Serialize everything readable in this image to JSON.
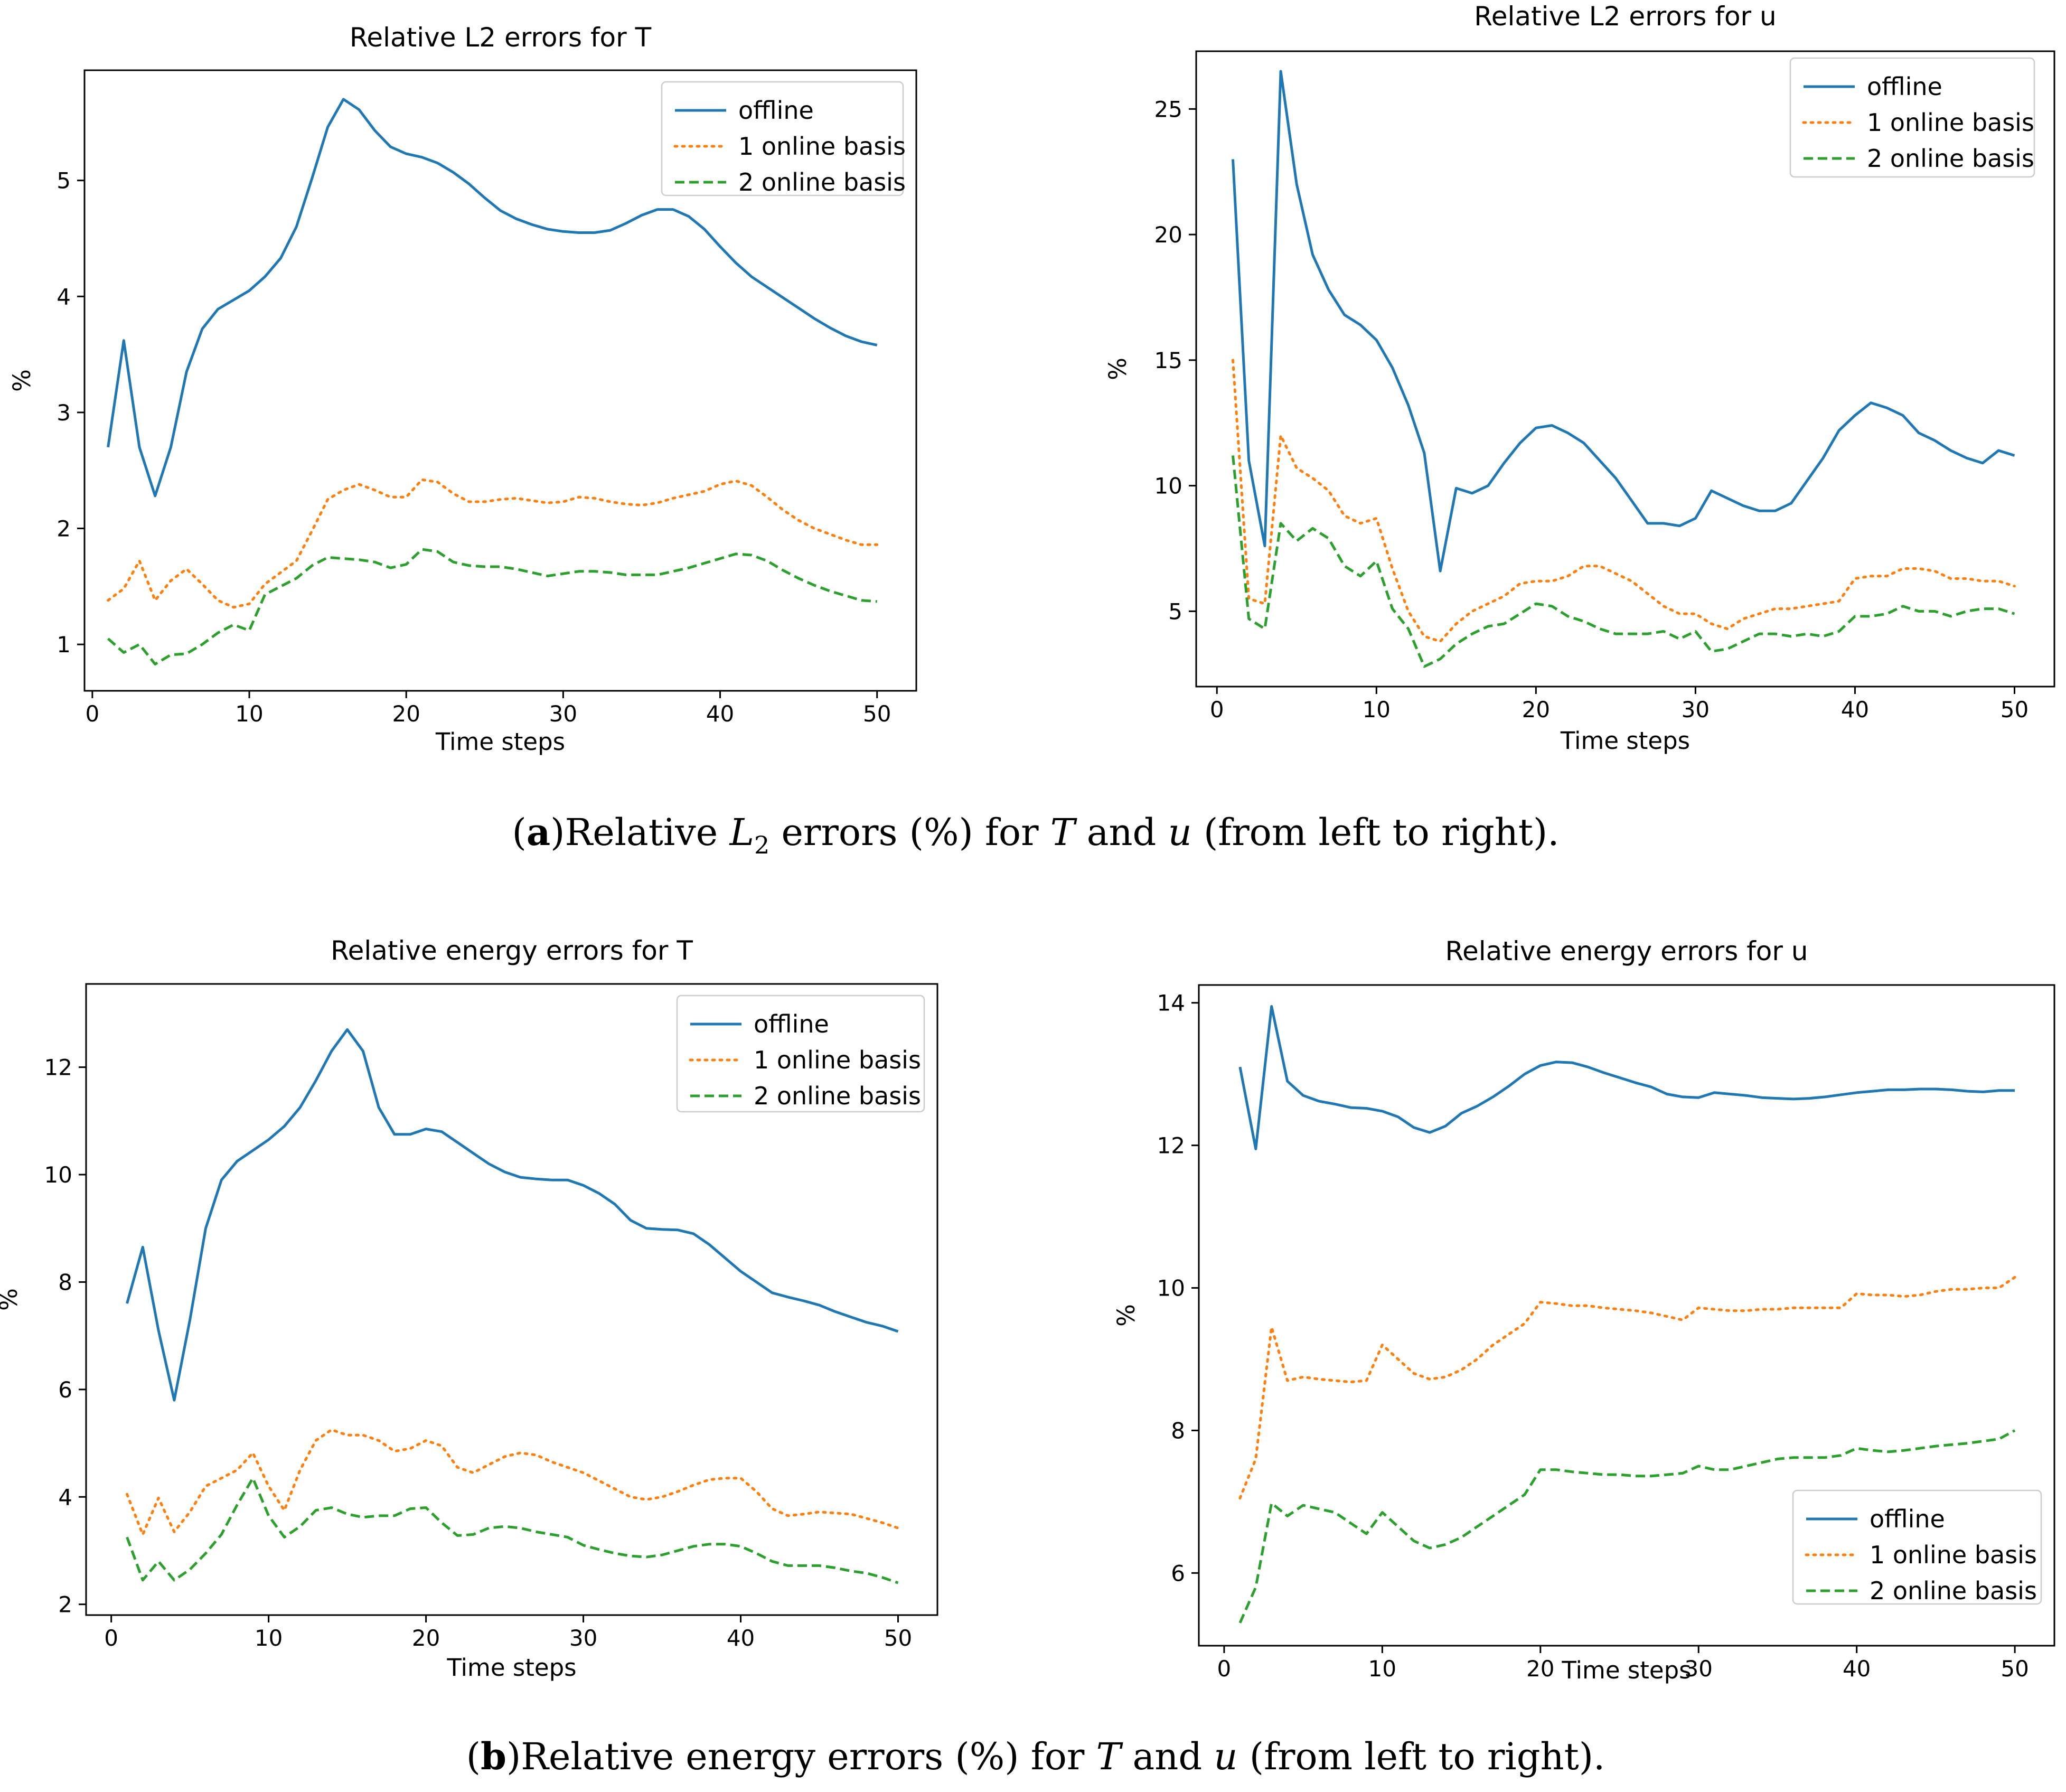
{
  "colors": {
    "offline": "#1f77b4",
    "online1": "#ff7f0e",
    "online2": "#2ca02c"
  },
  "legend": [
    "offline",
    "1 online basis",
    "2 online basis"
  ],
  "captions": {
    "a": {
      "label": "a",
      "text_before": "Relative ",
      "L": "L",
      "sub": "2",
      "text_mid": " errors (%) for ",
      "var1": "T",
      "and": " and ",
      "var2": "u",
      "text_after": " (from left to right)."
    },
    "b": {
      "label": "b",
      "text_before": "Relative energy errors (%) for ",
      "var1": "T",
      "and": " and ",
      "var2": "u",
      "text_after": " (from left to right)."
    }
  },
  "chart_data": [
    {
      "type": "line",
      "title": "Relative L2 errors for T",
      "xlabel": "Time steps",
      "ylabel": "%",
      "xlim": [
        -0.5,
        52.5
      ],
      "ylim": [
        0.6,
        5.95
      ],
      "xticks": [
        0,
        10,
        20,
        30,
        40,
        50
      ],
      "yticks": [
        1,
        2,
        3,
        4,
        5
      ],
      "legend_position": "top-right",
      "x": [
        1,
        2,
        3,
        4,
        5,
        6,
        7,
        8,
        9,
        10,
        11,
        12,
        13,
        14,
        15,
        16,
        17,
        18,
        19,
        20,
        21,
        22,
        23,
        24,
        25,
        26,
        27,
        28,
        29,
        30,
        31,
        32,
        33,
        34,
        35,
        36,
        37,
        38,
        39,
        40,
        41,
        42,
        43,
        44,
        45,
        46,
        47,
        48,
        49,
        50
      ],
      "series": [
        {
          "name": "offline",
          "style": "solid",
          "values": [
            2.7,
            3.62,
            2.7,
            2.28,
            2.7,
            3.35,
            3.72,
            3.89,
            3.97,
            4.05,
            4.17,
            4.33,
            4.6,
            5.02,
            5.46,
            5.7,
            5.61,
            5.43,
            5.29,
            5.23,
            5.2,
            5.15,
            5.07,
            4.97,
            4.85,
            4.74,
            4.67,
            4.62,
            4.58,
            4.56,
            4.55,
            4.55,
            4.57,
            4.63,
            4.7,
            4.75,
            4.75,
            4.69,
            4.58,
            4.43,
            4.29,
            4.17,
            4.08,
            3.99,
            3.9,
            3.81,
            3.73,
            3.66,
            3.61,
            3.58
          ]
        },
        {
          "name": "1 online basis",
          "style": "dotted",
          "values": [
            1.38,
            1.48,
            1.72,
            1.38,
            1.55,
            1.65,
            1.52,
            1.38,
            1.32,
            1.35,
            1.52,
            1.62,
            1.72,
            1.98,
            2.25,
            2.33,
            2.38,
            2.33,
            2.27,
            2.27,
            2.42,
            2.4,
            2.3,
            2.23,
            2.23,
            2.25,
            2.26,
            2.24,
            2.22,
            2.23,
            2.27,
            2.26,
            2.23,
            2.21,
            2.2,
            2.22,
            2.26,
            2.29,
            2.32,
            2.38,
            2.41,
            2.37,
            2.27,
            2.16,
            2.07,
            2.0,
            1.95,
            1.9,
            1.86,
            1.86
          ]
        },
        {
          "name": "2 online basis",
          "style": "dashed",
          "values": [
            1.05,
            0.93,
            1.0,
            0.83,
            0.91,
            0.92,
            1.0,
            1.1,
            1.17,
            1.12,
            1.43,
            1.5,
            1.57,
            1.68,
            1.75,
            1.74,
            1.73,
            1.71,
            1.66,
            1.69,
            1.82,
            1.8,
            1.71,
            1.68,
            1.67,
            1.67,
            1.65,
            1.62,
            1.59,
            1.61,
            1.63,
            1.63,
            1.62,
            1.6,
            1.6,
            1.6,
            1.63,
            1.66,
            1.7,
            1.74,
            1.78,
            1.77,
            1.72,
            1.64,
            1.57,
            1.51,
            1.46,
            1.42,
            1.38,
            1.37
          ]
        }
      ]
    },
    {
      "type": "line",
      "title": "Relative L2 errors for u",
      "xlabel": "Time steps",
      "ylabel": "%",
      "xlim": [
        -1.3,
        52.5
      ],
      "ylim": [
        2.0,
        27.3
      ],
      "xticks": [
        0,
        10,
        20,
        30,
        40,
        50
      ],
      "yticks": [
        5,
        10,
        15,
        20,
        25
      ],
      "legend_position": "top-right",
      "x": [
        1,
        2,
        3,
        4,
        5,
        6,
        7,
        8,
        9,
        10,
        11,
        12,
        13,
        14,
        15,
        16,
        17,
        18,
        19,
        20,
        21,
        22,
        23,
        24,
        25,
        26,
        27,
        28,
        29,
        30,
        31,
        32,
        33,
        34,
        35,
        36,
        37,
        38,
        39,
        40,
        41,
        42,
        43,
        44,
        45,
        46,
        47,
        48,
        49,
        50
      ],
      "series": [
        {
          "name": "offline",
          "style": "solid",
          "values": [
            23.0,
            11.0,
            7.6,
            26.5,
            22.0,
            19.2,
            17.8,
            16.8,
            16.4,
            15.8,
            14.7,
            13.2,
            11.3,
            6.6,
            9.9,
            9.7,
            10.0,
            10.9,
            11.7,
            12.3,
            12.4,
            12.1,
            11.7,
            11.0,
            10.3,
            9.4,
            8.5,
            8.5,
            8.4,
            8.7,
            9.8,
            9.5,
            9.2,
            9.0,
            9.0,
            9.3,
            10.2,
            11.1,
            12.2,
            12.8,
            13.3,
            13.1,
            12.8,
            12.1,
            11.8,
            11.4,
            11.1,
            10.9,
            11.4,
            11.2
          ]
        },
        {
          "name": "1 online basis",
          "style": "dotted",
          "values": [
            15.0,
            5.5,
            5.3,
            12.0,
            10.7,
            10.3,
            9.8,
            8.8,
            8.5,
            8.7,
            6.7,
            5.0,
            4.0,
            3.8,
            4.5,
            5.0,
            5.3,
            5.6,
            6.1,
            6.2,
            6.2,
            6.4,
            6.8,
            6.8,
            6.5,
            6.2,
            5.7,
            5.2,
            4.9,
            4.9,
            4.5,
            4.3,
            4.7,
            4.9,
            5.1,
            5.1,
            5.2,
            5.3,
            5.4,
            6.3,
            6.4,
            6.4,
            6.7,
            6.7,
            6.6,
            6.3,
            6.3,
            6.2,
            6.2,
            6.0
          ]
        },
        {
          "name": "2 online basis",
          "style": "dashed",
          "values": [
            11.2,
            4.7,
            4.3,
            8.5,
            7.8,
            8.3,
            7.9,
            6.8,
            6.4,
            7.0,
            5.1,
            4.3,
            2.8,
            3.1,
            3.7,
            4.1,
            4.4,
            4.5,
            4.9,
            5.3,
            5.2,
            4.8,
            4.6,
            4.3,
            4.1,
            4.1,
            4.1,
            4.2,
            3.9,
            4.2,
            3.4,
            3.5,
            3.8,
            4.1,
            4.1,
            4.0,
            4.1,
            4.0,
            4.2,
            4.8,
            4.8,
            4.9,
            5.2,
            5.0,
            5.0,
            4.8,
            5.0,
            5.1,
            5.1,
            4.9
          ]
        }
      ]
    },
    {
      "type": "line",
      "title": "Relative energy errors for T",
      "xlabel": "Time steps",
      "ylabel": "%",
      "xlim": [
        -1.6,
        52.5
      ],
      "ylim": [
        1.8,
        13.55
      ],
      "xticks": [
        0,
        10,
        20,
        30,
        40,
        50
      ],
      "yticks": [
        2,
        4,
        6,
        8,
        10,
        12
      ],
      "legend_position": "top-right",
      "x": [
        1,
        2,
        3,
        4,
        5,
        6,
        7,
        8,
        9,
        10,
        11,
        12,
        13,
        14,
        15,
        16,
        17,
        18,
        19,
        20,
        21,
        22,
        23,
        24,
        25,
        26,
        27,
        28,
        29,
        30,
        31,
        32,
        33,
        34,
        35,
        36,
        37,
        38,
        39,
        40,
        41,
        42,
        43,
        44,
        45,
        46,
        47,
        48,
        49,
        50
      ],
      "series": [
        {
          "name": "offline",
          "style": "solid",
          "values": [
            7.6,
            8.65,
            7.1,
            5.8,
            7.3,
            9.0,
            9.9,
            10.25,
            10.45,
            10.65,
            10.9,
            11.25,
            11.75,
            12.3,
            12.7,
            12.3,
            11.25,
            10.75,
            10.75,
            10.85,
            10.8,
            10.6,
            10.4,
            10.2,
            10.05,
            9.95,
            9.92,
            9.9,
            9.9,
            9.8,
            9.65,
            9.45,
            9.15,
            9.0,
            8.98,
            8.97,
            8.9,
            8.7,
            8.45,
            8.2,
            8.0,
            7.8,
            7.72,
            7.65,
            7.57,
            7.45,
            7.35,
            7.25,
            7.18,
            7.08
          ]
        },
        {
          "name": "1 online basis",
          "style": "dotted",
          "values": [
            4.05,
            3.3,
            3.98,
            3.35,
            3.72,
            4.2,
            4.35,
            4.5,
            4.82,
            4.2,
            3.75,
            4.5,
            5.05,
            5.25,
            5.15,
            5.15,
            5.05,
            4.85,
            4.9,
            5.05,
            4.95,
            4.55,
            4.45,
            4.6,
            4.75,
            4.82,
            4.78,
            4.65,
            4.55,
            4.45,
            4.3,
            4.15,
            4.0,
            3.95,
            4.0,
            4.1,
            4.22,
            4.32,
            4.35,
            4.35,
            4.1,
            3.78,
            3.65,
            3.68,
            3.72,
            3.7,
            3.68,
            3.6,
            3.52,
            3.42
          ]
        },
        {
          "name": "2 online basis",
          "style": "dashed",
          "values": [
            3.25,
            2.45,
            2.8,
            2.45,
            2.65,
            2.95,
            3.3,
            3.85,
            4.35,
            3.65,
            3.25,
            3.45,
            3.75,
            3.8,
            3.68,
            3.62,
            3.65,
            3.65,
            3.78,
            3.8,
            3.52,
            3.28,
            3.3,
            3.42,
            3.45,
            3.42,
            3.35,
            3.3,
            3.25,
            3.1,
            3.02,
            2.95,
            2.9,
            2.88,
            2.92,
            3.0,
            3.08,
            3.12,
            3.12,
            3.08,
            2.95,
            2.8,
            2.72,
            2.72,
            2.72,
            2.68,
            2.62,
            2.58,
            2.5,
            2.4
          ]
        }
      ]
    },
    {
      "type": "line",
      "title": "Relative energy errors for u",
      "xlabel": "Time steps",
      "ylabel": "%",
      "xlim": [
        -1.6,
        52.5
      ],
      "ylim": [
        4.98,
        14.25
      ],
      "xticks": [
        0,
        10,
        20,
        30,
        40,
        50
      ],
      "yticks": [
        6,
        8,
        10,
        12,
        14
      ],
      "legend_position": "lower-right",
      "x": [
        1,
        2,
        3,
        4,
        5,
        6,
        7,
        8,
        9,
        10,
        11,
        12,
        13,
        14,
        15,
        16,
        17,
        18,
        19,
        20,
        21,
        22,
        23,
        24,
        25,
        26,
        27,
        28,
        29,
        30,
        31,
        32,
        33,
        34,
        35,
        36,
        37,
        38,
        39,
        40,
        41,
        42,
        43,
        44,
        45,
        46,
        47,
        48,
        49,
        50
      ],
      "series": [
        {
          "name": "offline",
          "style": "solid",
          "values": [
            13.1,
            11.95,
            13.95,
            12.9,
            12.7,
            12.62,
            12.58,
            12.53,
            12.52,
            12.48,
            12.4,
            12.25,
            12.18,
            12.27,
            12.45,
            12.55,
            12.68,
            12.83,
            13.0,
            13.12,
            13.17,
            13.16,
            13.1,
            13.02,
            12.95,
            12.88,
            12.82,
            12.72,
            12.68,
            12.67,
            12.74,
            12.72,
            12.7,
            12.67,
            12.66,
            12.65,
            12.66,
            12.68,
            12.71,
            12.74,
            12.76,
            12.78,
            12.78,
            12.79,
            12.79,
            12.78,
            12.76,
            12.75,
            12.77,
            12.77
          ]
        },
        {
          "name": "1 online basis",
          "style": "dotted",
          "values": [
            7.05,
            7.6,
            9.45,
            8.7,
            8.75,
            8.72,
            8.7,
            8.68,
            8.7,
            9.2,
            9.0,
            8.8,
            8.72,
            8.75,
            8.85,
            9.0,
            9.2,
            9.35,
            9.5,
            9.8,
            9.78,
            9.75,
            9.75,
            9.72,
            9.7,
            9.68,
            9.65,
            9.6,
            9.55,
            9.72,
            9.7,
            9.68,
            9.68,
            9.7,
            9.7,
            9.72,
            9.72,
            9.72,
            9.72,
            9.92,
            9.9,
            9.9,
            9.88,
            9.9,
            9.95,
            9.98,
            9.98,
            10.0,
            10.0,
            10.15
          ]
        },
        {
          "name": "2 online basis",
          "style": "dashed",
          "values": [
            5.3,
            5.8,
            6.98,
            6.8,
            6.95,
            6.9,
            6.85,
            6.7,
            6.55,
            6.85,
            6.65,
            6.45,
            6.35,
            6.4,
            6.5,
            6.65,
            6.8,
            6.95,
            7.1,
            7.45,
            7.45,
            7.42,
            7.4,
            7.38,
            7.38,
            7.36,
            7.36,
            7.38,
            7.4,
            7.5,
            7.45,
            7.45,
            7.5,
            7.55,
            7.6,
            7.62,
            7.62,
            7.62,
            7.65,
            7.75,
            7.72,
            7.7,
            7.72,
            7.75,
            7.78,
            7.8,
            7.82,
            7.85,
            7.88,
            8.0
          ]
        }
      ]
    }
  ]
}
